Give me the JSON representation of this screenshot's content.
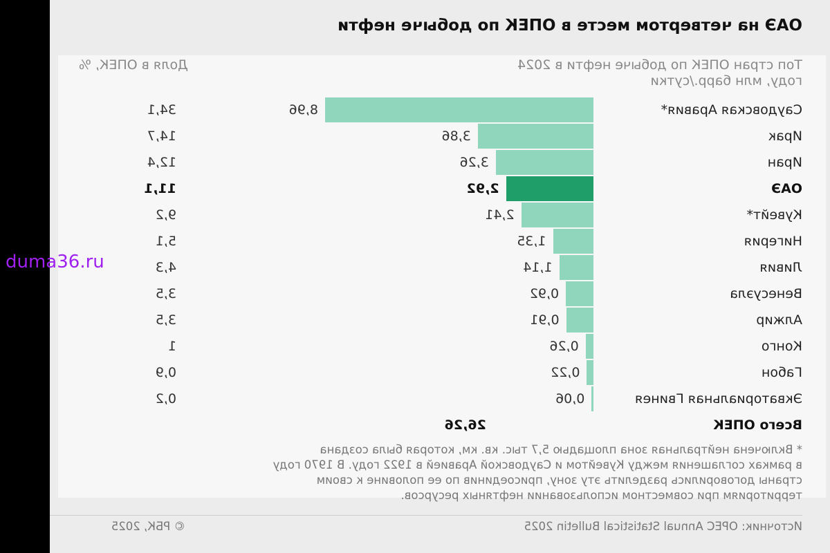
{
  "watermark": "duma36.ru",
  "chart_data": {
    "type": "bar",
    "title": "ОАЭ на четвертом месте в ОПЕК по добыче нефти",
    "subtitle": "Топ стран ОПЕК по добыче нефти в 2024 году, млн барр./сутки",
    "share_header": "Доля в ОПЕК, %",
    "categories": [
      "Саудовская Аравия*",
      "Ирак",
      "Иран",
      "ОАЭ",
      "Кувейт*",
      "Нигерия",
      "Ливия",
      "Венесуэла",
      "Алжир",
      "Конго",
      "Габон",
      "Экваториальная Гвинея"
    ],
    "values": [
      8.96,
      3.86,
      3.26,
      2.92,
      2.41,
      1.35,
      1.14,
      0.92,
      0.91,
      0.26,
      0.22,
      0.06
    ],
    "value_labels": [
      "8,96",
      "3,86",
      "3,26",
      "2,92",
      "2,41",
      "1,35",
      "1,14",
      "0,92",
      "0,91",
      "0,26",
      "0,22",
      "0,06"
    ],
    "shares": [
      "34,1",
      "14,7",
      "12,4",
      "11,1",
      "9,2",
      "5,1",
      "4,3",
      "3,5",
      "3,5",
      "1",
      "0,9",
      "0,2"
    ],
    "highlight": "ОАЭ",
    "total_label": "Всего ОПЕК",
    "total_value": "26,26",
    "xlim": [
      0,
      8.96
    ],
    "colors": {
      "bar": "#8fd6bd",
      "highlight": "#1f9e6a"
    }
  },
  "footnote": "* Включена нейтральная зона площадью 5,7 тыс. кв. км, которая была создана\nв рамках соглашения между Кувейтом и Саудовской Аравией в 1922 году. В 1970 году\nстраны договорились разделить эту зону, присоединив по ее половине к своим\nтерриториям при совместном использовании нефтяных ресурсов.",
  "source": "Источник: OPEC Annual Statistical Bulletin 2025",
  "copyright": "© РБК, 2025"
}
